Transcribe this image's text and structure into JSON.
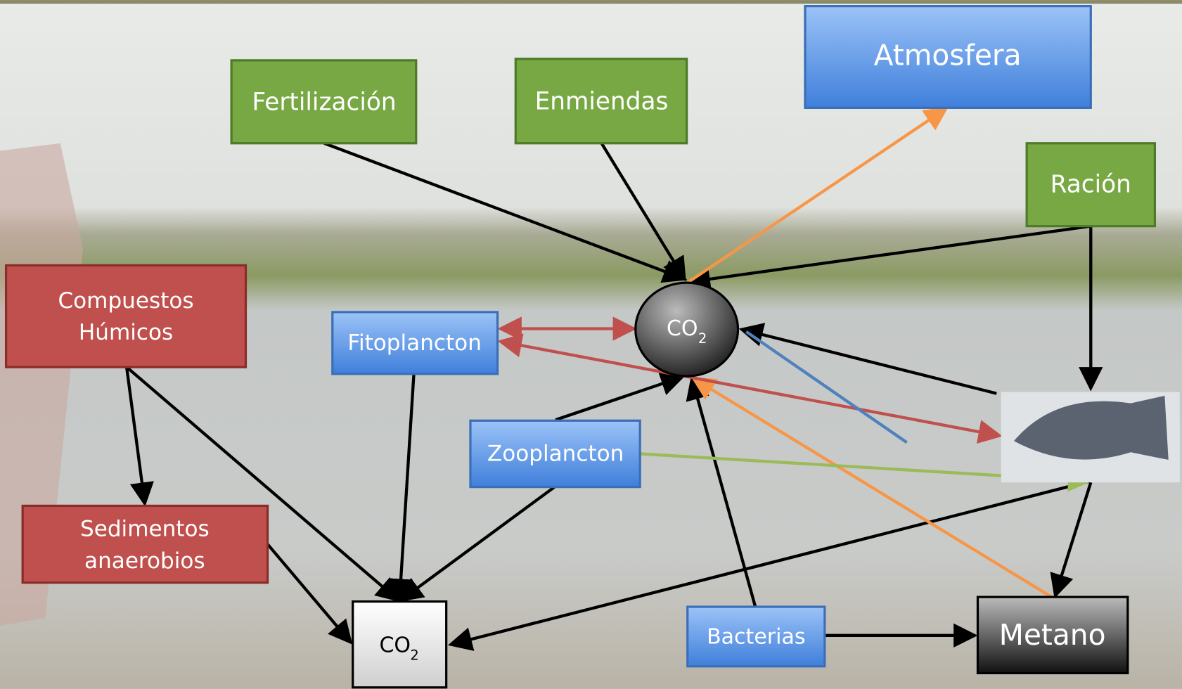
{
  "nodes": [
    {
      "label": "Fertilización"
    },
    {
      "label": "Enmiendas"
    },
    {
      "label": "Atmosfera"
    },
    {
      "label": "Ración"
    },
    {
      "label": "Compuestos",
      "label2": "Húmicos"
    },
    {
      "label": "Fitoplancton"
    },
    {
      "label": "CO",
      "sub": "2"
    },
    {
      "label": "Zooplancton"
    },
    {
      "label": "Sedimentos",
      "label2": "anaerobios"
    },
    {
      "label": "CO",
      "sub": "2"
    },
    {
      "label": "Bacterias"
    },
    {
      "label": "Metano"
    }
  ]
}
